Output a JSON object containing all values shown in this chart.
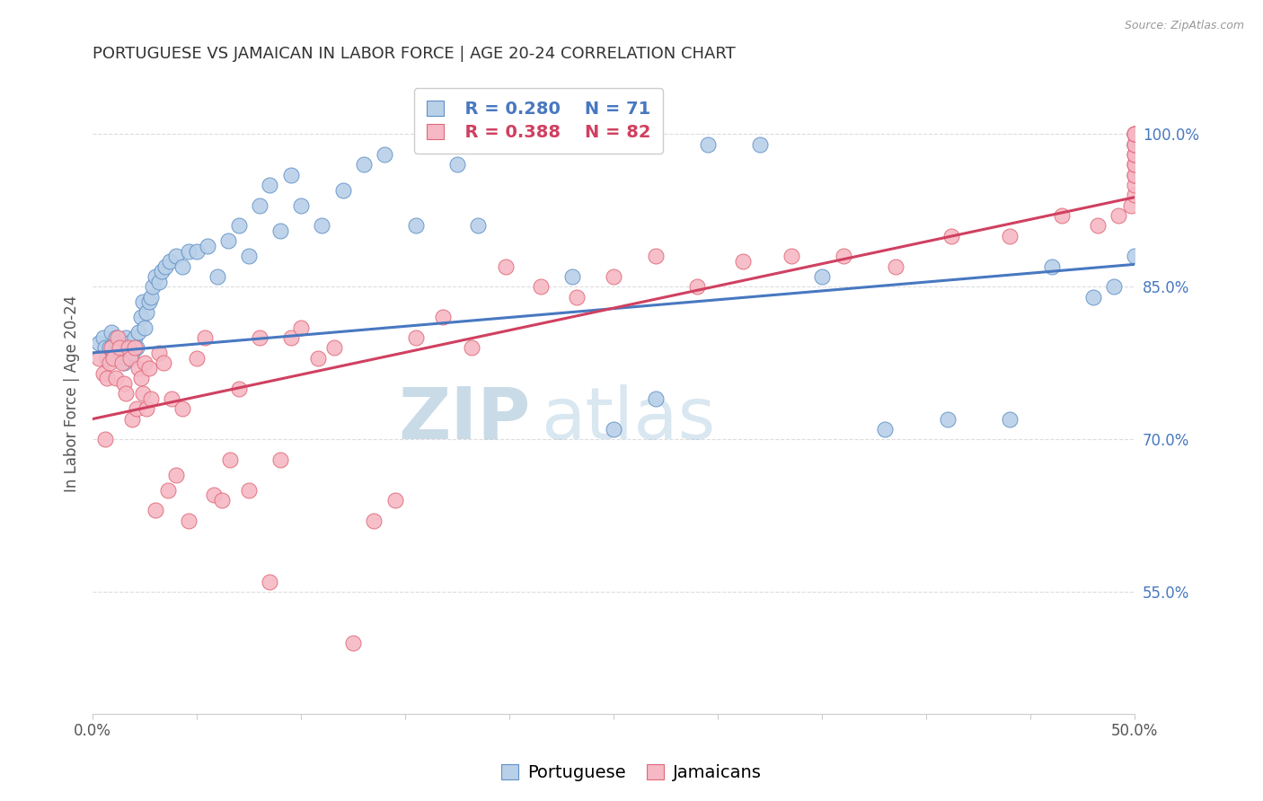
{
  "title": "PORTUGUESE VS JAMAICAN IN LABOR FORCE | AGE 20-24 CORRELATION CHART",
  "source_text": "Source: ZipAtlas.com",
  "ylabel": "In Labor Force | Age 20-24",
  "ytick_labels": [
    "55.0%",
    "70.0%",
    "85.0%",
    "100.0%"
  ],
  "ytick_values": [
    0.55,
    0.7,
    0.85,
    1.0
  ],
  "xlim": [
    0.0,
    0.5
  ],
  "ylim": [
    0.43,
    1.06
  ],
  "legend_R_blue": "R = 0.280",
  "legend_N_blue": "N = 71",
  "legend_R_pink": "R = 0.388",
  "legend_N_pink": "N = 82",
  "blue_fill": "#b8d0e8",
  "pink_fill": "#f5b8c4",
  "blue_edge": "#6090c8",
  "pink_edge": "#e06878",
  "blue_line_color": "#4878c0",
  "pink_line_color": "#d04060",
  "legend_blue_color": "#4878c0",
  "legend_pink_color": "#d04060",
  "source_color": "#999999",
  "watermark_zip": "ZIP",
  "watermark_atlas": "atlas",
  "watermark_color": "#c5d8ea",
  "title_color": "#333333",
  "axis_label_color": "#555555",
  "ytick_color": "#4878c0",
  "xtick_color": "#555555",
  "grid_color": "#dddddd",
  "blue_line_x0": 0.0,
  "blue_line_x1": 0.5,
  "blue_line_y0": 0.785,
  "blue_line_y1": 0.872,
  "pink_line_x0": 0.0,
  "pink_line_x1": 0.5,
  "pink_line_y0": 0.72,
  "pink_line_y1": 0.938,
  "blue_scatter_x": [
    0.003,
    0.005,
    0.006,
    0.007,
    0.008,
    0.009,
    0.01,
    0.011,
    0.012,
    0.013,
    0.014,
    0.015,
    0.016,
    0.016,
    0.017,
    0.018,
    0.019,
    0.02,
    0.021,
    0.022,
    0.023,
    0.024,
    0.025,
    0.026,
    0.027,
    0.028,
    0.029,
    0.03,
    0.032,
    0.033,
    0.035,
    0.037,
    0.04,
    0.043,
    0.046,
    0.05,
    0.055,
    0.06,
    0.065,
    0.07,
    0.075,
    0.08,
    0.085,
    0.09,
    0.095,
    0.1,
    0.11,
    0.12,
    0.13,
    0.14,
    0.155,
    0.165,
    0.175,
    0.185,
    0.2,
    0.215,
    0.23,
    0.25,
    0.27,
    0.295,
    0.32,
    0.35,
    0.38,
    0.41,
    0.44,
    0.46,
    0.48,
    0.49,
    0.5,
    0.5,
    0.5
  ],
  "blue_scatter_y": [
    0.795,
    0.8,
    0.79,
    0.78,
    0.79,
    0.805,
    0.785,
    0.8,
    0.795,
    0.78,
    0.79,
    0.775,
    0.78,
    0.8,
    0.795,
    0.79,
    0.785,
    0.8,
    0.79,
    0.805,
    0.82,
    0.835,
    0.81,
    0.825,
    0.835,
    0.84,
    0.85,
    0.86,
    0.855,
    0.865,
    0.87,
    0.875,
    0.88,
    0.87,
    0.885,
    0.885,
    0.89,
    0.86,
    0.895,
    0.91,
    0.88,
    0.93,
    0.95,
    0.905,
    0.96,
    0.93,
    0.91,
    0.945,
    0.97,
    0.98,
    0.91,
    0.99,
    0.97,
    0.91,
    0.99,
    0.99,
    0.86,
    0.71,
    0.74,
    0.99,
    0.99,
    0.86,
    0.71,
    0.72,
    0.72,
    0.87,
    0.84,
    0.85,
    0.88,
    0.99,
    1.0
  ],
  "pink_scatter_x": [
    0.003,
    0.005,
    0.006,
    0.007,
    0.008,
    0.009,
    0.01,
    0.011,
    0.012,
    0.013,
    0.014,
    0.015,
    0.016,
    0.017,
    0.018,
    0.019,
    0.02,
    0.021,
    0.022,
    0.023,
    0.024,
    0.025,
    0.026,
    0.027,
    0.028,
    0.03,
    0.032,
    0.034,
    0.036,
    0.038,
    0.04,
    0.043,
    0.046,
    0.05,
    0.054,
    0.058,
    0.062,
    0.066,
    0.07,
    0.075,
    0.08,
    0.085,
    0.09,
    0.095,
    0.1,
    0.108,
    0.116,
    0.125,
    0.135,
    0.145,
    0.155,
    0.168,
    0.182,
    0.198,
    0.215,
    0.232,
    0.25,
    0.27,
    0.29,
    0.312,
    0.335,
    0.36,
    0.385,
    0.412,
    0.44,
    0.465,
    0.482,
    0.492,
    0.498,
    0.5,
    0.5,
    0.5,
    0.5,
    0.5,
    0.5,
    0.5,
    0.5,
    0.5,
    0.5,
    0.5,
    0.5,
    0.5
  ],
  "pink_scatter_y": [
    0.78,
    0.765,
    0.7,
    0.76,
    0.775,
    0.79,
    0.78,
    0.76,
    0.8,
    0.79,
    0.775,
    0.755,
    0.745,
    0.79,
    0.78,
    0.72,
    0.79,
    0.73,
    0.77,
    0.76,
    0.745,
    0.775,
    0.73,
    0.77,
    0.74,
    0.63,
    0.785,
    0.775,
    0.65,
    0.74,
    0.665,
    0.73,
    0.62,
    0.78,
    0.8,
    0.645,
    0.64,
    0.68,
    0.75,
    0.65,
    0.8,
    0.56,
    0.68,
    0.8,
    0.81,
    0.78,
    0.79,
    0.5,
    0.62,
    0.64,
    0.8,
    0.82,
    0.79,
    0.87,
    0.85,
    0.84,
    0.86,
    0.88,
    0.85,
    0.875,
    0.88,
    0.88,
    0.87,
    0.9,
    0.9,
    0.92,
    0.91,
    0.92,
    0.93,
    0.94,
    0.95,
    0.96,
    0.96,
    0.97,
    0.97,
    0.98,
    0.98,
    0.99,
    0.99,
    1.0,
    1.0,
    1.0
  ],
  "xtick_positions": [
    0.0,
    0.05,
    0.1,
    0.15,
    0.2,
    0.25,
    0.3,
    0.35,
    0.4,
    0.45,
    0.5
  ],
  "legend_fontsize": 14,
  "title_fontsize": 13,
  "ylabel_fontsize": 12,
  "tick_label_fontsize": 12
}
